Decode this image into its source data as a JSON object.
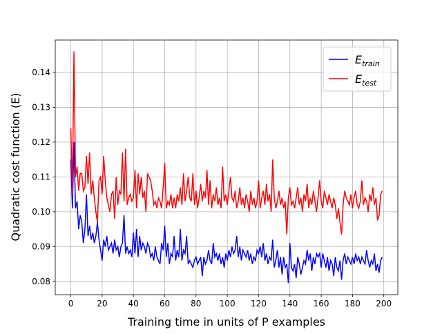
{
  "chart_data": {
    "type": "line",
    "xlabel": "Training time in units of P examples",
    "ylabel": "Quadratic cost function (E)",
    "xlim": [
      -9.95,
      208.95
    ],
    "ylim": [
      0.0762,
      0.1493
    ],
    "xticks": [
      0,
      20,
      40,
      60,
      80,
      100,
      120,
      140,
      160,
      180,
      200
    ],
    "yticks": [
      0.08,
      0.09,
      {
        "value": 0.1,
        "label": "0.10"
      },
      0.11,
      0.12,
      0.13,
      0.14
    ],
    "grid": true,
    "legend": "upper right",
    "x": [
      0,
      1,
      2,
      3,
      4,
      5,
      6,
      7,
      8,
      9,
      10,
      11,
      12,
      13,
      14,
      15,
      16,
      17,
      18,
      19,
      20,
      21,
      22,
      23,
      24,
      25,
      26,
      27,
      28,
      29,
      30,
      31,
      32,
      33,
      34,
      35,
      36,
      37,
      38,
      39,
      40,
      41,
      42,
      43,
      44,
      45,
      46,
      47,
      48,
      49,
      50,
      51,
      52,
      53,
      54,
      55,
      56,
      57,
      58,
      59,
      60,
      61,
      62,
      63,
      64,
      65,
      66,
      67,
      68,
      69,
      70,
      71,
      72,
      73,
      74,
      75,
      76,
      77,
      78,
      79,
      80,
      81,
      82,
      83,
      84,
      85,
      86,
      87,
      88,
      89,
      90,
      91,
      92,
      93,
      94,
      95,
      96,
      97,
      98,
      99,
      100,
      101,
      102,
      103,
      104,
      105,
      106,
      107,
      108,
      109,
      110,
      111,
      112,
      113,
      114,
      115,
      116,
      117,
      118,
      119,
      120,
      121,
      122,
      123,
      124,
      125,
      126,
      127,
      128,
      129,
      130,
      131,
      132,
      133,
      134,
      135,
      136,
      137,
      138,
      139,
      140,
      141,
      142,
      143,
      144,
      145,
      146,
      147,
      148,
      149,
      150,
      151,
      152,
      153,
      154,
      155,
      156,
      157,
      158,
      159,
      160,
      161,
      162,
      163,
      164,
      165,
      166,
      167,
      168,
      169,
      170,
      171,
      172,
      173,
      174,
      175,
      176,
      177,
      178,
      179,
      180,
      181,
      182,
      183,
      184,
      185,
      186,
      187,
      188,
      189,
      190,
      191,
      192,
      193,
      194,
      195,
      196,
      197,
      198,
      199
    ],
    "series": [
      {
        "name": "Etrain",
        "color": "#0000ff",
        "values": [
          0.115,
          0.101,
          0.12,
          0.101,
          0.103,
          0.095,
          0.099,
          0.097,
          0.091,
          0.095,
          0.105,
          0.093,
          0.096,
          0.092,
          0.094,
          0.091,
          0.093,
          0.097,
          0.092,
          0.089,
          0.086,
          0.092,
          0.09,
          0.093,
          0.089,
          0.09,
          0.091,
          0.088,
          0.092,
          0.089,
          0.09,
          0.087,
          0.09,
          0.091,
          0.099,
          0.088,
          0.09,
          0.088,
          0.089,
          0.087,
          0.094,
          0.088,
          0.095,
          0.087,
          0.093,
          0.089,
          0.091,
          0.09,
          0.088,
          0.091,
          0.09,
          0.087,
          0.088,
          0.086,
          0.09,
          0.087,
          0.086,
          0.085,
          0.091,
          0.089,
          0.096,
          0.087,
          0.091,
          0.085,
          0.088,
          0.087,
          0.093,
          0.086,
          0.089,
          0.087,
          0.095,
          0.086,
          0.089,
          0.088,
          0.093,
          0.085,
          0.086,
          0.085,
          0.084,
          0.086,
          0.087,
          0.085,
          0.086,
          0.087,
          0.0815,
          0.087,
          0.085,
          0.086,
          0.089,
          0.086,
          0.085,
          0.091,
          0.087,
          0.088,
          0.086,
          0.088,
          0.085,
          0.087,
          0.084,
          0.088,
          0.086,
          0.089,
          0.087,
          0.09,
          0.088,
          0.089,
          0.093,
          0.087,
          0.09,
          0.086,
          0.089,
          0.088,
          0.087,
          0.089,
          0.086,
          0.088,
          0.085,
          0.087,
          0.086,
          0.089,
          0.088,
          0.09,
          0.087,
          0.091,
          0.086,
          0.088,
          0.085,
          0.087,
          0.086,
          0.092,
          0.084,
          0.086,
          0.089,
          0.084,
          0.087,
          0.082,
          0.087,
          0.084,
          0.085,
          0.0795,
          0.091,
          0.084,
          0.083,
          0.085,
          0.081,
          0.087,
          0.085,
          0.082,
          0.084,
          0.086,
          0.085,
          0.089,
          0.086,
          0.088,
          0.083,
          0.087,
          0.085,
          0.088,
          0.087,
          0.088,
          0.084,
          0.088,
          0.086,
          0.084,
          0.087,
          0.083,
          0.086,
          0.085,
          0.0815,
          0.087,
          0.084,
          0.083,
          0.086,
          0.0805,
          0.086,
          0.088,
          0.085,
          0.087,
          0.086,
          0.085,
          0.087,
          0.085,
          0.088,
          0.086,
          0.087,
          0.085,
          0.087,
          0.086,
          0.085,
          0.089,
          0.086,
          0.084,
          0.086,
          0.085,
          0.088,
          0.083,
          0.085,
          0.0825,
          0.086,
          0.087
        ]
      },
      {
        "name": "Etest",
        "color": "#ff0000",
        "values": [
          0.124,
          0.105,
          0.146,
          0.11,
          0.113,
          0.106,
          0.111,
          0.111,
          0.106,
          0.107,
          0.116,
          0.108,
          0.117,
          0.105,
          0.109,
          0.104,
          0.1,
          0.097,
          0.109,
          0.11,
          0.105,
          0.116,
          0.109,
          0.104,
          0.102,
          0.1,
          0.105,
          0.106,
          0.098,
          0.11,
          0.102,
          0.106,
          0.105,
          0.117,
          0.103,
          0.118,
          0.102,
          0.104,
          0.105,
          0.103,
          0.104,
          0.112,
          0.101,
          0.111,
          0.105,
          0.11,
          0.104,
          0.106,
          0.1,
          0.111,
          0.11,
          0.109,
          0.106,
          0.102,
          0.103,
          0.101,
          0.104,
          0.103,
          0.101,
          0.107,
          0.114,
          0.101,
          0.103,
          0.102,
          0.105,
          0.101,
          0.104,
          0.101,
          0.105,
          0.103,
          0.107,
          0.102,
          0.111,
          0.103,
          0.106,
          0.11,
          0.104,
          0.103,
          0.111,
          0.102,
          0.106,
          0.101,
          0.104,
          0.108,
          0.103,
          0.106,
          0.104,
          0.112,
          0.102,
          0.109,
          0.101,
          0.105,
          0.103,
          0.107,
          0.102,
          0.104,
          0.101,
          0.113,
          0.103,
          0.105,
          0.102,
          0.106,
          0.11,
          0.104,
          0.103,
          0.106,
          0.101,
          0.103,
          0.107,
          0.102,
          0.104,
          0.101,
          0.105,
          0.103,
          0.1,
          0.106,
          0.102,
          0.104,
          0.101,
          0.103,
          0.109,
          0.101,
          0.104,
          0.106,
          0.102,
          0.108,
          0.103,
          0.105,
          0.1,
          0.115,
          0.104,
          0.101,
          0.103,
          0.106,
          0.102,
          0.104,
          0.101,
          0.103,
          0.0935,
          0.104,
          0.107,
          0.102,
          0.103,
          0.101,
          0.104,
          0.107,
          0.102,
          0.104,
          0.1,
          0.105,
          0.103,
          0.108,
          0.101,
          0.104,
          0.102,
          0.106,
          0.103,
          0.1,
          0.104,
          0.109,
          0.103,
          0.101,
          0.106,
          0.104,
          0.102,
          0.105,
          0.103,
          0.101,
          0.104,
          0.102,
          0.098,
          0.101,
          0.097,
          0.0935,
          0.102,
          0.106,
          0.104,
          0.103,
          0.102,
          0.105,
          0.101,
          0.104,
          0.106,
          0.102,
          0.101,
          0.103,
          0.109,
          0.102,
          0.104,
          0.103,
          0.1,
          0.105,
          0.103,
          0.107,
          0.102,
          0.104,
          0.0975,
          0.099,
          0.105,
          0.106
        ]
      }
    ]
  }
}
